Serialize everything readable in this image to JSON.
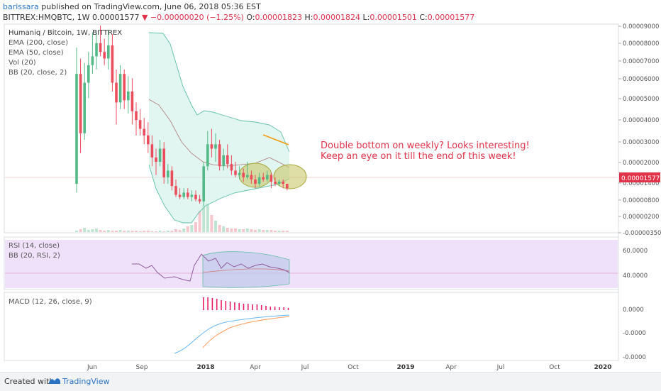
{
  "header": {
    "user": "barissara",
    "published": " published on TradingView.com, June 06, 2018 05:36 EST",
    "symbol": "BITTREX:HMQBTC, 1W",
    "last": "0.00001577",
    "change": "▼ −0.00000020 (−1.25%)",
    "o_label": "O:",
    "o": "0.00001823",
    "h_label": "H:",
    "h": "0.00001824",
    "l_label": "L:",
    "l": "0.00001501",
    "c_label": "C:",
    "c": "0.00001577"
  },
  "legend": {
    "title": "Humaniq / Bitcoin, 1W, BITTREX",
    "ema200": "EMA (200, close)",
    "ema50": "EMA (50, close)",
    "vol": "Vol (20)",
    "bb": "BB (20, close, 2)",
    "rsi": "RSI (14, close)",
    "rsi_bb": "BB (20, RSI, 2)",
    "macd": "MACD (12, 26, close, 9)"
  },
  "annotation": {
    "line1": "Double bottom on weekly? Looks interesting!",
    "line2": "Keep an eye on it till the end of this week!"
  },
  "price_badge": "0.00001577",
  "colors": {
    "up": "#53b987",
    "down": "#eb4d5c",
    "bb_fill": "#c9eee5",
    "bb_line": "#5fbfa5",
    "rsi_bg": "#f0e1fb",
    "annotation": "#e0334a",
    "ellipse": "#c8c86a",
    "ema_orange": "#f39c12",
    "macd_blue": "#64b5f6",
    "macd_orange": "#ff9b5e",
    "hist": "#e91e63"
  },
  "footer": {
    "created": "Created with",
    "brand": "TradingView"
  },
  "chart_data": [
    {
      "type": "candlestick",
      "title": "Humaniq / Bitcoin, 1W, BITTREX",
      "ylim": [
        -3.5e-06,
        9e-06
      ],
      "y_ticks": [
        "0.00009000",
        "0.00008000",
        "0.00007000",
        "0.00006000",
        "0.00005000",
        "0.00004000",
        "0.00003000",
        "0.00002000",
        "0.00001400",
        "0.00000800",
        "0.00000200",
        "-0.00000350"
      ],
      "x_ticks": [
        "Jun",
        "Sep",
        "2018",
        "Apr",
        "Jul",
        "Oct",
        "2019",
        "Apr",
        "Jul",
        "Oct",
        "2020"
      ],
      "last_price": "0.00001577",
      "candles": [
        {
          "o": 1.8e-05,
          "h": 8e-05,
          "l": 1.4e-05,
          "c": 6.8e-05
        },
        {
          "o": 6.8e-05,
          "h": 7.5e-05,
          "l": 3.2e-05,
          "c": 4.1e-05
        },
        {
          "o": 4.1e-05,
          "h": 7.3e-05,
          "l": 3.8e-05,
          "c": 6.4e-05
        },
        {
          "o": 6.4e-05,
          "h": 7.8e-05,
          "l": 5.7e-05,
          "c": 7.2e-05
        },
        {
          "o": 7.2e-05,
          "h": 8.7e-05,
          "l": 6.8e-05,
          "c": 7.6e-05
        },
        {
          "o": 7.6e-05,
          "h": 8.7e-05,
          "l": 7e-05,
          "c": 8.2e-05
        },
        {
          "o": 8.2e-05,
          "h": 9e-05,
          "l": 7.6e-05,
          "c": 7.8e-05
        },
        {
          "o": 7.8e-05,
          "h": 8.4e-05,
          "l": 7.2e-05,
          "c": 7.5e-05
        },
        {
          "o": 7.5e-05,
          "h": 8.8e-05,
          "l": 7e-05,
          "c": 8.1e-05
        },
        {
          "o": 8.1e-05,
          "h": 8.6e-05,
          "l": 6e-05,
          "c": 6.4e-05
        },
        {
          "o": 6.4e-05,
          "h": 7e-05,
          "l": 4.5e-05,
          "c": 5.5e-05
        },
        {
          "o": 5.5e-05,
          "h": 7.2e-05,
          "l": 5.2e-05,
          "c": 6.8e-05
        },
        {
          "o": 6.8e-05,
          "h": 7e-05,
          "l": 5.2e-05,
          "c": 5.6e-05
        },
        {
          "o": 5.6e-05,
          "h": 6.7e-05,
          "l": 5e-05,
          "c": 6e-05
        },
        {
          "o": 6e-05,
          "h": 6.6e-05,
          "l": 4.5e-05,
          "c": 5.1e-05
        },
        {
          "o": 5.1e-05,
          "h": 5.5e-05,
          "l": 4e-05,
          "c": 4.7e-05
        },
        {
          "o": 4.7e-05,
          "h": 5.2e-05,
          "l": 4e-05,
          "c": 4.3e-05
        },
        {
          "o": 4.3e-05,
          "h": 4.8e-05,
          "l": 3.6e-05,
          "c": 4e-05
        },
        {
          "o": 4e-05,
          "h": 4.6e-05,
          "l": 3.2e-05,
          "c": 3.6e-05
        },
        {
          "o": 3.6e-05,
          "h": 4e-05,
          "l": 2.6e-05,
          "c": 3e-05
        },
        {
          "o": 3e-05,
          "h": 3.4e-05,
          "l": 2.2e-05,
          "c": 2.8e-05
        },
        {
          "o": 2.8e-05,
          "h": 3.8e-05,
          "l": 2.6e-05,
          "c": 3.4e-05
        },
        {
          "o": 3.4e-05,
          "h": 3.7e-05,
          "l": 1.8e-05,
          "c": 2.1e-05
        },
        {
          "o": 2.1e-05,
          "h": 2.7e-05,
          "l": 1.8e-05,
          "c": 2.4e-05
        },
        {
          "o": 2.4e-05,
          "h": 2.6e-05,
          "l": 1.5e-05,
          "c": 1.7e-05
        },
        {
          "o": 1.7e-05,
          "h": 2e-05,
          "l": 1.2e-05,
          "c": 1.3e-05
        },
        {
          "o": 1.3e-05,
          "h": 1.6e-05,
          "l": 1.1e-05,
          "c": 1.2e-05
        },
        {
          "o": 1.2e-05,
          "h": 1.6e-05,
          "l": 1.1e-05,
          "c": 1.4e-05
        },
        {
          "o": 1.4e-05,
          "h": 1.6e-05,
          "l": 1.1e-05,
          "c": 1.2e-05
        },
        {
          "o": 1.2e-05,
          "h": 1.5e-05,
          "l": 1e-05,
          "c": 1.3e-05
        },
        {
          "o": 1.3e-05,
          "h": 1.5e-05,
          "l": 1e-05,
          "c": 1.1e-05
        },
        {
          "o": 1.1e-05,
          "h": 1.3e-05,
          "l": 9e-06,
          "c": 1e-05
        },
        {
          "o": 1e-05,
          "h": 2.8e-05,
          "l": 8e-06,
          "c": 2.6e-05
        },
        {
          "o": 2.6e-05,
          "h": 4.2e-05,
          "l": 2.4e-05,
          "c": 3.6e-05
        },
        {
          "o": 3.6e-05,
          "h": 4.3e-05,
          "l": 3e-05,
          "c": 3.4e-05
        },
        {
          "o": 3.4e-05,
          "h": 4.1e-05,
          "l": 2.8e-05,
          "c": 3.6e-05
        },
        {
          "o": 3.6e-05,
          "h": 3.8e-05,
          "l": 2.4e-05,
          "c": 2.6e-05
        },
        {
          "o": 2.6e-05,
          "h": 3.4e-05,
          "l": 2.4e-05,
          "c": 3.1e-05
        },
        {
          "o": 3.1e-05,
          "h": 3.6e-05,
          "l": 2.5e-05,
          "c": 2.7e-05
        },
        {
          "o": 2.7e-05,
          "h": 3.1e-05,
          "l": 2.2e-05,
          "c": 2.4e-05
        },
        {
          "o": 2.4e-05,
          "h": 2.8e-05,
          "l": 2.1e-05,
          "c": 2.2e-05
        },
        {
          "o": 2.2e-05,
          "h": 2.6e-05,
          "l": 2e-05,
          "c": 2.3e-05
        },
        {
          "o": 2.3e-05,
          "h": 2.5e-05,
          "l": 1.9e-05,
          "c": 2.1e-05
        },
        {
          "o": 2.1e-05,
          "h": 2.8e-05,
          "l": 2e-05,
          "c": 2.2e-05
        },
        {
          "o": 2.2e-05,
          "h": 2.4e-05,
          "l": 1.8e-05,
          "c": 2e-05
        },
        {
          "o": 2e-05,
          "h": 2.2e-05,
          "l": 1.6e-05,
          "c": 1.8e-05
        },
        {
          "o": 1.8e-05,
          "h": 2.3e-05,
          "l": 1.7e-05,
          "c": 2.1e-05
        },
        {
          "o": 2.1e-05,
          "h": 2.3e-05,
          "l": 1.9e-05,
          "c": 2e-05
        },
        {
          "o": 2e-05,
          "h": 2.4e-05,
          "l": 1.9e-05,
          "c": 2.2e-05
        },
        {
          "o": 2.2e-05,
          "h": 2.3e-05,
          "l": 1.6e-05,
          "c": 1.9e-05
        },
        {
          "o": 1.9e-05,
          "h": 2.1e-05,
          "l": 1.7e-05,
          "c": 1.8e-05
        },
        {
          "o": 1.8e-05,
          "h": 2e-05,
          "l": 1.7e-05,
          "c": 1.9e-05
        },
        {
          "o": 1.9e-05,
          "h": 2e-05,
          "l": 1.6e-05,
          "c": 1.8e-05
        },
        {
          "o": 1.8e-05,
          "h": 1.8e-05,
          "l": 1.5e-05,
          "c": 1.6e-05
        }
      ]
    },
    {
      "type": "line",
      "title": "RSI (14, close)",
      "y_ticks": [
        "60.0000",
        "40.0000"
      ]
    },
    {
      "type": "bar",
      "title": "MACD (12, 26, close, 9)",
      "y_ticks": [
        "0.0000",
        "-0.0000",
        "-0.0000"
      ]
    }
  ]
}
